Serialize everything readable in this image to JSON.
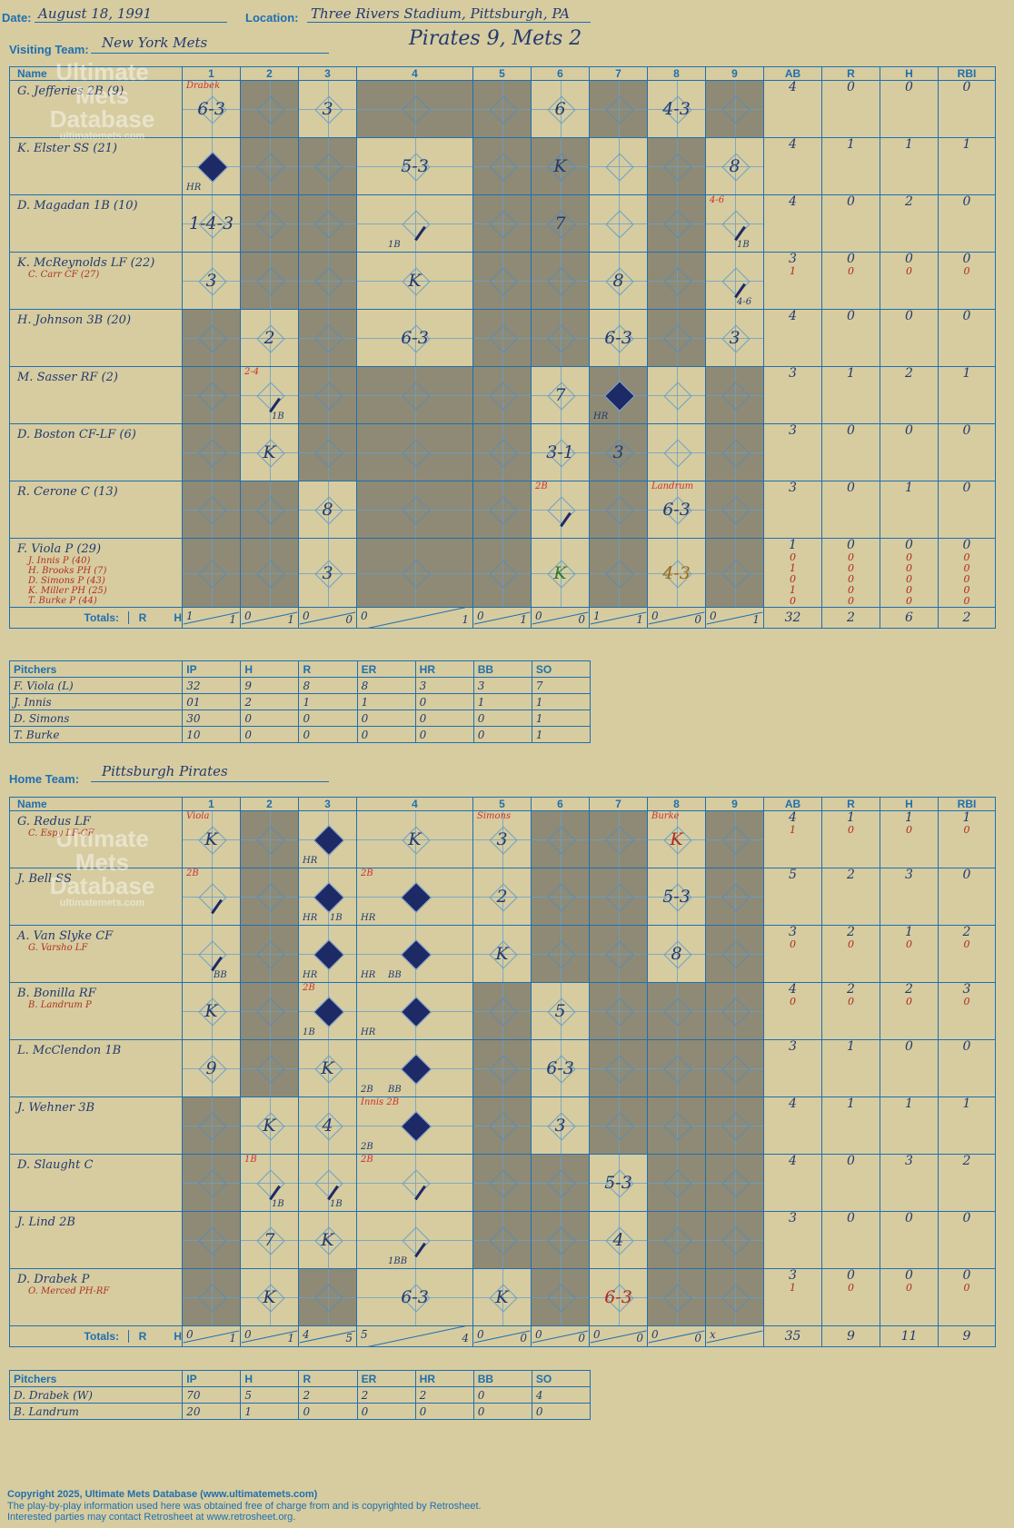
{
  "header": {
    "date_label": "Date:",
    "date": "August 18, 1991",
    "location_label": "Location:",
    "location": "Three Rivers Stadium, Pittsburgh, PA",
    "visiting_label": "Visiting Team:",
    "visiting_team": "New York Mets",
    "home_label": "Home Team:",
    "home_team": "Pittsburgh Pirates",
    "game_title": "Pirates 9, Mets 2"
  },
  "columns": {
    "name": "Name",
    "innings": [
      "1",
      "2",
      "3",
      "4",
      "5",
      "6",
      "7",
      "8",
      "9"
    ],
    "stats": [
      "AB",
      "R",
      "H",
      "RBI"
    ]
  },
  "totals_label": "Totals:",
  "rh": {
    "r": "R",
    "h": "H"
  },
  "visiting": {
    "rows": [
      {
        "name": "G. Jefferies 2B (9)",
        "subs": [],
        "ab": [
          "4"
        ],
        "r": [
          "0"
        ],
        "h": [
          "0"
        ],
        "rbi": [
          "0"
        ]
      },
      {
        "name": "K. Elster SS (21)",
        "subs": [],
        "ab": [
          "4"
        ],
        "r": [
          "1"
        ],
        "h": [
          "1"
        ],
        "rbi": [
          "1"
        ]
      },
      {
        "name": "D. Magadan 1B (10)",
        "subs": [],
        "ab": [
          "4"
        ],
        "r": [
          "0"
        ],
        "h": [
          "2"
        ],
        "rbi": [
          "0"
        ]
      },
      {
        "name": "K. McReynolds LF (22)",
        "subs": [
          "C. Carr CF (27)"
        ],
        "ab": [
          "3",
          "1"
        ],
        "r": [
          "0",
          "0"
        ],
        "h": [
          "0",
          "0"
        ],
        "rbi": [
          "0",
          "0"
        ]
      },
      {
        "name": "H. Johnson 3B (20)",
        "subs": [],
        "ab": [
          "4"
        ],
        "r": [
          "0"
        ],
        "h": [
          "0"
        ],
        "rbi": [
          "0"
        ]
      },
      {
        "name": "M. Sasser RF (2)",
        "subs": [],
        "ab": [
          "3"
        ],
        "r": [
          "1"
        ],
        "h": [
          "2"
        ],
        "rbi": [
          "1"
        ]
      },
      {
        "name": "D. Boston CF-LF (6)",
        "subs": [],
        "ab": [
          "3"
        ],
        "r": [
          "0"
        ],
        "h": [
          "0"
        ],
        "rbi": [
          "0"
        ]
      },
      {
        "name": "R. Cerone C (13)",
        "subs": [],
        "ab": [
          "3"
        ],
        "r": [
          "0"
        ],
        "h": [
          "1"
        ],
        "rbi": [
          "0"
        ]
      },
      {
        "name": "F. Viola P (29)",
        "subs": [
          "J. Innis P (40)",
          "H. Brooks PH (7)",
          "D. Simons P (43)",
          "K. Miller PH (25)",
          "T. Burke P (44)"
        ],
        "ab": [
          "1",
          "0",
          "1",
          "0",
          "1",
          "0"
        ],
        "r": [
          "0",
          "0",
          "0",
          "0",
          "0",
          "0"
        ],
        "h": [
          "0",
          "0",
          "0",
          "0",
          "0",
          "0"
        ],
        "rbi": [
          "0",
          "0",
          "0",
          "0",
          "0",
          "0"
        ]
      }
    ],
    "shade": [
      [
        0,
        1,
        0,
        1,
        1,
        0,
        1,
        0,
        1
      ],
      [
        0,
        1,
        1,
        0,
        1,
        1,
        0,
        1,
        0
      ],
      [
        0,
        1,
        1,
        0,
        1,
        1,
        0,
        1,
        0
      ],
      [
        0,
        1,
        1,
        0,
        1,
        1,
        0,
        1,
        0
      ],
      [
        1,
        0,
        1,
        0,
        1,
        1,
        0,
        1,
        0
      ],
      [
        1,
        0,
        1,
        1,
        1,
        0,
        1,
        0,
        1
      ],
      [
        1,
        0,
        1,
        1,
        1,
        0,
        1,
        0,
        1
      ],
      [
        1,
        1,
        0,
        1,
        1,
        0,
        1,
        0,
        1
      ],
      [
        1,
        1,
        0,
        1,
        1,
        0,
        1,
        0,
        1
      ]
    ],
    "cells": [
      [
        {
          "t": "6-3",
          "note": "Drabek"
        },
        null,
        {
          "t": "3"
        },
        null,
        null,
        {
          "t": "6"
        },
        null,
        {
          "t": "4-3"
        },
        null
      ],
      [
        {
          "run": true,
          "tag": "HR"
        },
        null,
        null,
        {
          "t": "5-3"
        },
        null,
        {
          "t": "K"
        },
        null,
        null,
        {
          "t": "8"
        }
      ],
      [
        {
          "t": "1-4-3"
        },
        null,
        null,
        {
          "hit": true,
          "tag2": "1B"
        },
        null,
        {
          "t": "7"
        },
        null,
        null,
        {
          "hit": true,
          "tag2": "1B",
          "note": "4-6"
        }
      ],
      [
        {
          "t": "3"
        },
        null,
        null,
        {
          "t": "K"
        },
        null,
        null,
        {
          "t": "8"
        },
        null,
        {
          "hit": true,
          "tag2": "4-6"
        }
      ],
      [
        null,
        {
          "t": "2"
        },
        null,
        {
          "t": "6-3"
        },
        null,
        null,
        {
          "t": "6-3"
        },
        null,
        {
          "t": "3"
        }
      ],
      [
        null,
        {
          "hit": true,
          "tag2": "1B",
          "note": "2-4"
        },
        null,
        null,
        null,
        {
          "t": "7"
        },
        {
          "run": true,
          "tag": "HR"
        },
        null,
        null
      ],
      [
        null,
        {
          "t": "K"
        },
        null,
        null,
        null,
        {
          "t": "3-1"
        },
        {
          "t": "3"
        },
        null,
        null
      ],
      [
        null,
        null,
        {
          "t": "8"
        },
        null,
        null,
        {
          "hit": true,
          "note": "2B"
        },
        null,
        {
          "t": "6-3",
          "note": "Landrum"
        },
        null
      ],
      [
        null,
        null,
        {
          "t": "3"
        },
        null,
        null,
        {
          "t": "K",
          "c": "grn"
        },
        null,
        {
          "t": "4-3",
          "c": "org"
        },
        null
      ]
    ],
    "totals": [
      {
        "r": "1",
        "h": "1"
      },
      {
        "r": "0",
        "h": "1"
      },
      {
        "r": "0",
        "h": "0"
      },
      {
        "r": "0",
        "h": "1"
      },
      {
        "r": "0",
        "h": "1"
      },
      {
        "r": "0",
        "h": "0"
      },
      {
        "r": "1",
        "h": "1"
      },
      {
        "r": "0",
        "h": "0"
      },
      {
        "r": "0",
        "h": "1"
      }
    ],
    "stat_totals": [
      "32",
      "2",
      "6",
      "2"
    ],
    "pitchers": {
      "headers": [
        "Pitchers",
        "IP",
        "H",
        "R",
        "ER",
        "HR",
        "BB",
        "SO"
      ],
      "rows": [
        [
          "F. Viola (L)",
          "32",
          "9",
          "8",
          "8",
          "3",
          "3",
          "7"
        ],
        [
          "J. Innis",
          "01",
          "2",
          "1",
          "1",
          "0",
          "1",
          "1"
        ],
        [
          "D. Simons",
          "30",
          "0",
          "0",
          "0",
          "0",
          "0",
          "1"
        ],
        [
          "T. Burke",
          "10",
          "0",
          "0",
          "0",
          "0",
          "0",
          "1"
        ]
      ]
    }
  },
  "home": {
    "rows": [
      {
        "name": "G. Redus LF",
        "subs": [
          "C. Espy LF-CF"
        ],
        "ab": [
          "4",
          "1"
        ],
        "r": [
          "1",
          "0"
        ],
        "h": [
          "1",
          "0"
        ],
        "rbi": [
          "1",
          "0"
        ]
      },
      {
        "name": "J. Bell SS",
        "subs": [],
        "ab": [
          "5"
        ],
        "r": [
          "2"
        ],
        "h": [
          "3"
        ],
        "rbi": [
          "0"
        ]
      },
      {
        "name": "A. Van Slyke CF",
        "subs": [
          "G. Varsho LF"
        ],
        "ab": [
          "3",
          "0"
        ],
        "r": [
          "2",
          "0"
        ],
        "h": [
          "1",
          "0"
        ],
        "rbi": [
          "2",
          "0"
        ]
      },
      {
        "name": "B. Bonilla RF",
        "subs": [
          "B. Landrum P"
        ],
        "ab": [
          "4",
          "0"
        ],
        "r": [
          "2",
          "0"
        ],
        "h": [
          "2",
          "0"
        ],
        "rbi": [
          "3",
          "0"
        ]
      },
      {
        "name": "L. McClendon 1B",
        "subs": [],
        "ab": [
          "3"
        ],
        "r": [
          "1"
        ],
        "h": [
          "0"
        ],
        "rbi": [
          "0"
        ]
      },
      {
        "name": "J. Wehner 3B",
        "subs": [],
        "ab": [
          "4"
        ],
        "r": [
          "1"
        ],
        "h": [
          "1"
        ],
        "rbi": [
          "1"
        ]
      },
      {
        "name": "D. Slaught C",
        "subs": [],
        "ab": [
          "4"
        ],
        "r": [
          "0"
        ],
        "h": [
          "3"
        ],
        "rbi": [
          "2"
        ]
      },
      {
        "name": "J. Lind 2B",
        "subs": [],
        "ab": [
          "3"
        ],
        "r": [
          "0"
        ],
        "h": [
          "0"
        ],
        "rbi": [
          "0"
        ]
      },
      {
        "name": "D. Drabek P",
        "subs": [
          "O. Merced PH-RF"
        ],
        "ab": [
          "3",
          "1"
        ],
        "r": [
          "0",
          "0"
        ],
        "h": [
          "0",
          "0"
        ],
        "rbi": [
          "0",
          "0"
        ]
      }
    ],
    "shade": [
      [
        0,
        1,
        0,
        0,
        0,
        1,
        1,
        0,
        1
      ],
      [
        0,
        1,
        0,
        0,
        0,
        1,
        1,
        0,
        1
      ],
      [
        0,
        1,
        0,
        0,
        0,
        1,
        1,
        0,
        1
      ],
      [
        0,
        1,
        0,
        0,
        1,
        0,
        1,
        1,
        1
      ],
      [
        0,
        1,
        0,
        0,
        1,
        0,
        1,
        1,
        1
      ],
      [
        1,
        0,
        0,
        0,
        1,
        0,
        1,
        1,
        1
      ],
      [
        1,
        0,
        0,
        0,
        1,
        1,
        0,
        1,
        1
      ],
      [
        1,
        0,
        0,
        0,
        1,
        1,
        0,
        1,
        1
      ],
      [
        1,
        0,
        1,
        0,
        0,
        1,
        0,
        1,
        1
      ]
    ],
    "cells": [
      [
        {
          "t": "K",
          "note": "Viola"
        },
        null,
        {
          "run": true,
          "tag": "HR"
        },
        {
          "t": "K"
        },
        {
          "t": "3",
          "note": "Simons"
        },
        null,
        null,
        {
          "t": "K",
          "c": "red",
          "note": "Burke"
        },
        null
      ],
      [
        {
          "hit": true,
          "note": "2B"
        },
        null,
        {
          "run": true,
          "tag": "HR",
          "tag2": "1B"
        },
        {
          "run": true,
          "tag": "HR",
          "note": "2B"
        },
        {
          "t": "2"
        },
        null,
        null,
        {
          "t": "5-3"
        },
        null
      ],
      [
        {
          "hit": true,
          "tag2": "BB"
        },
        null,
        {
          "run": true,
          "tag": "HR"
        },
        {
          "run": true,
          "tag": "HR",
          "tag2": "BB"
        },
        {
          "t": "K"
        },
        null,
        null,
        {
          "t": "8"
        },
        null
      ],
      [
        {
          "t": "K"
        },
        null,
        {
          "run": true,
          "tag": "1B",
          "note": "2B"
        },
        {
          "run": true,
          "tag": "HR"
        },
        null,
        {
          "t": "5"
        },
        null,
        null,
        null
      ],
      [
        {
          "t": "9"
        },
        null,
        {
          "t": "K"
        },
        {
          "run": true,
          "tag": "2B",
          "tag2": "BB"
        },
        null,
        {
          "t": "6-3"
        },
        null,
        null,
        null
      ],
      [
        null,
        {
          "t": "K"
        },
        {
          "t": "4"
        },
        {
          "run": true,
          "tag": "2B",
          "note": "Innis 2B"
        },
        null,
        {
          "t": "3"
        },
        null,
        null,
        null
      ],
      [
        null,
        {
          "hit": true,
          "tag2": "1B",
          "note": "1B"
        },
        {
          "hit": true,
          "tag2": "1B"
        },
        {
          "hit": true,
          "note": "2B"
        },
        null,
        null,
        {
          "t": "5-3"
        },
        null,
        null
      ],
      [
        null,
        {
          "t": "7"
        },
        {
          "t": "K"
        },
        {
          "hit": true,
          "tag2": "1BB"
        },
        null,
        null,
        {
          "t": "4"
        },
        null,
        null
      ],
      [
        null,
        {
          "t": "K"
        },
        null,
        {
          "t": "6-3"
        },
        {
          "t": "K"
        },
        null,
        {
          "t": "6-3",
          "c": "red"
        },
        null,
        null
      ]
    ],
    "totals": [
      {
        "r": "0",
        "h": "1"
      },
      {
        "r": "0",
        "h": "1"
      },
      {
        "r": "4",
        "h": "5"
      },
      {
        "r": "5",
        "h": "4"
      },
      {
        "r": "0",
        "h": "0"
      },
      {
        "r": "0",
        "h": "0"
      },
      {
        "r": "0",
        "h": "0"
      },
      {
        "r": "0",
        "h": "0"
      },
      {
        "r": "x",
        "h": ""
      }
    ],
    "stat_totals": [
      "35",
      "9",
      "11",
      "9"
    ],
    "pitchers": {
      "headers": [
        "Pitchers",
        "IP",
        "H",
        "R",
        "ER",
        "HR",
        "BB",
        "SO"
      ],
      "rows": [
        [
          "D. Drabek (W)",
          "70",
          "5",
          "2",
          "2",
          "2",
          "0",
          "4"
        ],
        [
          "B. Landrum",
          "20",
          "1",
          "0",
          "0",
          "0",
          "0",
          "0"
        ]
      ]
    }
  },
  "watermark": {
    "line1": "Ultimate",
    "line2": "Mets",
    "line3": "Database",
    "small": "ultimatemets.com"
  },
  "footer": {
    "line1": "Copyright 2025, Ultimate Mets Database (www.ultimatemets.com)",
    "line2": "The play-by-play information used here was obtained free of charge from and is copyrighted by Retrosheet.",
    "line3": "Interested parties may contact Retrosheet at www.retrosheet.org."
  },
  "colors": {
    "background": "#d6cca0",
    "grid": "#1f6fb0",
    "shade": "#8e8a75",
    "ink": "#233a6e",
    "run": "#1e2a66",
    "note": "#d0302a"
  }
}
